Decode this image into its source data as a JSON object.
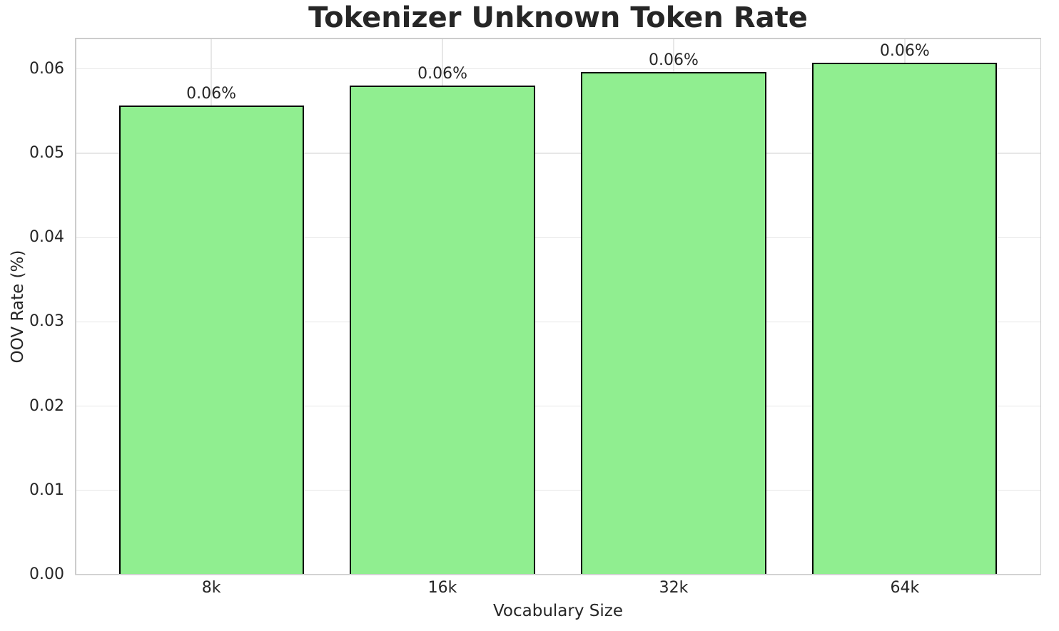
{
  "figure": {
    "background_color": "#ffffff"
  },
  "chart_data": {
    "type": "bar",
    "title": "Tokenizer Unknown Token Rate",
    "xlabel": "Vocabulary Size",
    "ylabel": "OOV Rate (%)",
    "categories": [
      "8k",
      "16k",
      "32k",
      "64k"
    ],
    "values": [
      0.0557,
      0.058,
      0.0596,
      0.0607
    ],
    "bar_labels": [
      "0.06%",
      "0.06%",
      "0.06%",
      "0.06%"
    ],
    "ylim": [
      0,
      0.0637
    ],
    "xlim": [
      -0.59,
      3.59
    ],
    "bar_width_units": 0.8,
    "yticks": [
      0,
      0.01,
      0.02,
      0.03,
      0.04,
      0.05,
      0.06
    ],
    "ytick_labels": [
      "0.00",
      "0.01",
      "0.02",
      "0.03",
      "0.04",
      "0.05",
      "0.06"
    ],
    "grid": true,
    "legend": null,
    "colors": {
      "bar_fill": "#90EE90",
      "bar_edge": "#000000",
      "grid": "#e7e7e7",
      "spine": "#cccccc",
      "text": "#262626"
    }
  }
}
